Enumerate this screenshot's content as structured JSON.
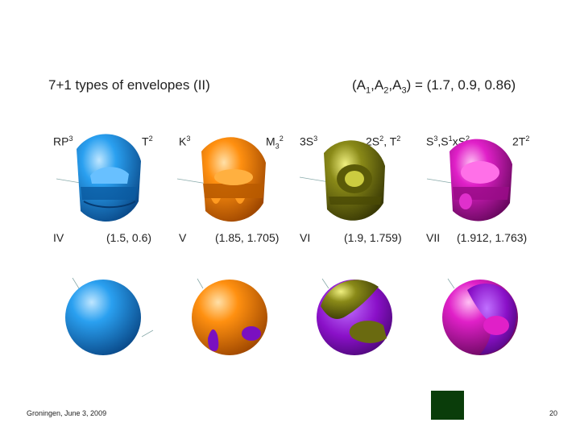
{
  "slide": {
    "title": "7+1 types of envelopes (II)",
    "params": {
      "A1": "A",
      "s1": "1",
      "c1": ",A",
      "s2": "2",
      "c2": ",A",
      "s3": "3",
      "rest": ") = (1.7, 0.9, 0.86)",
      "open": "("
    },
    "footer": "Groningen, June 3, 2009",
    "page_number": "20"
  },
  "row1": {
    "rp3": "RP",
    "rp3_sup": "3",
    "t2": "T",
    "t2_sup": "2",
    "k3": "K",
    "k3_sup": "3",
    "m32": "M",
    "m32_sub": "3",
    "m32_sup": "2",
    "s3": "3S",
    "s3_sup": "3",
    "s2t2": "2S",
    "s2t2_sup": "2",
    "s2t2_rest": ", T",
    "s2t2_sup2": "2",
    "s3s1": "S",
    "s3s1_sup": "3",
    "s3s1_mid": ",S",
    "s3s1_sup2": "1",
    "s3s1_x": "xS",
    "s3s1_sup3": "2",
    "t22": "2T",
    "t22_sup": "2"
  },
  "row2": {
    "iv": "IV",
    "iv_val": "(1.5, 0.6)",
    "v": "V",
    "v_val": "(1.85, 1.705)",
    "vi": "VI",
    "vi_val": "(1.9, 1.759)",
    "vii": "VII",
    "vii_val": "(1.912, 1.763)"
  },
  "colors": {
    "blue": "#1e90e0",
    "orange": "#ff8a10",
    "olive": "#7a7a10",
    "magenta": "#e020c8",
    "purple": "#8a10c8",
    "badge": "#0a3d0a"
  }
}
